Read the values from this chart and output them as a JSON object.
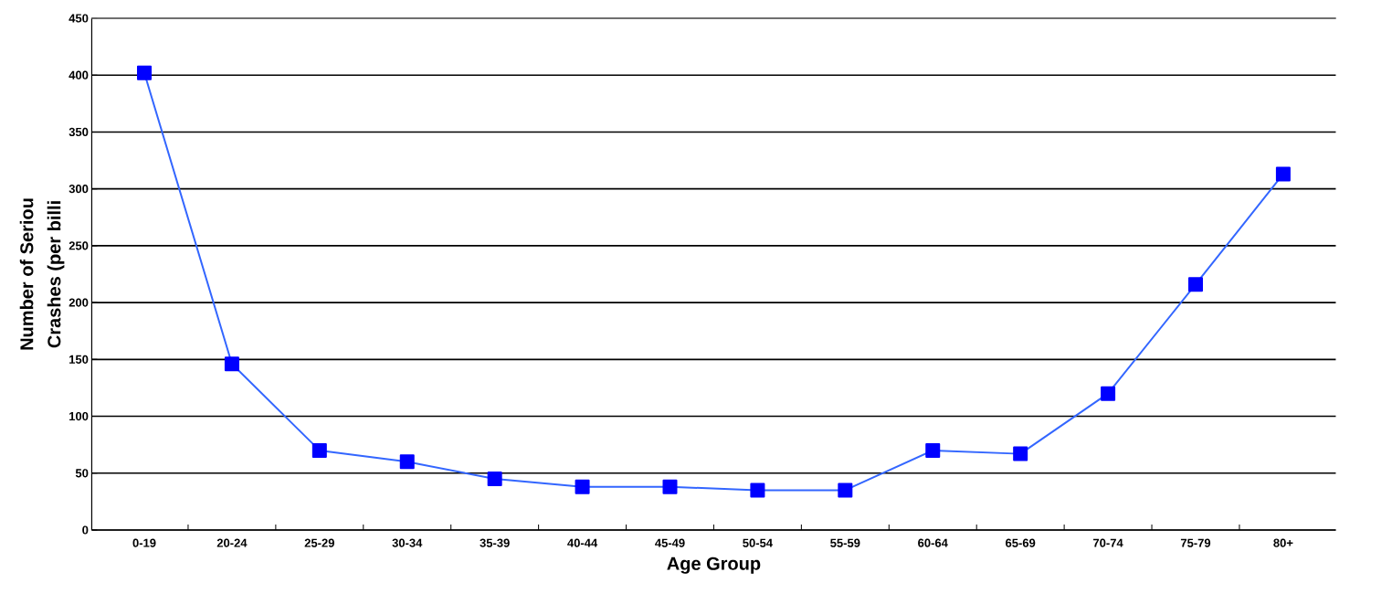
{
  "chart_data": {
    "type": "line",
    "xlabel": "Age Group",
    "ylabel": "Number of Seriou Crashes (per billi",
    "categories": [
      "0-19",
      "20-24",
      "25-29",
      "30-34",
      "35-39",
      "40-44",
      "45-49",
      "50-54",
      "55-59",
      "60-64",
      "65-69",
      "70-74",
      "75-79",
      "80+"
    ],
    "series": [
      {
        "color": "#3366ff",
        "values": [
          402,
          146,
          70,
          60,
          45,
          38,
          38,
          35,
          35,
          70,
          67,
          120,
          216,
          313
        ]
      }
    ],
    "ylim": [
      0,
      450
    ],
    "yticks": [
      0,
      50,
      100,
      150,
      200,
      250,
      300,
      350,
      400,
      450
    ],
    "grid": "y",
    "marker": "square",
    "line_style": "solid"
  }
}
